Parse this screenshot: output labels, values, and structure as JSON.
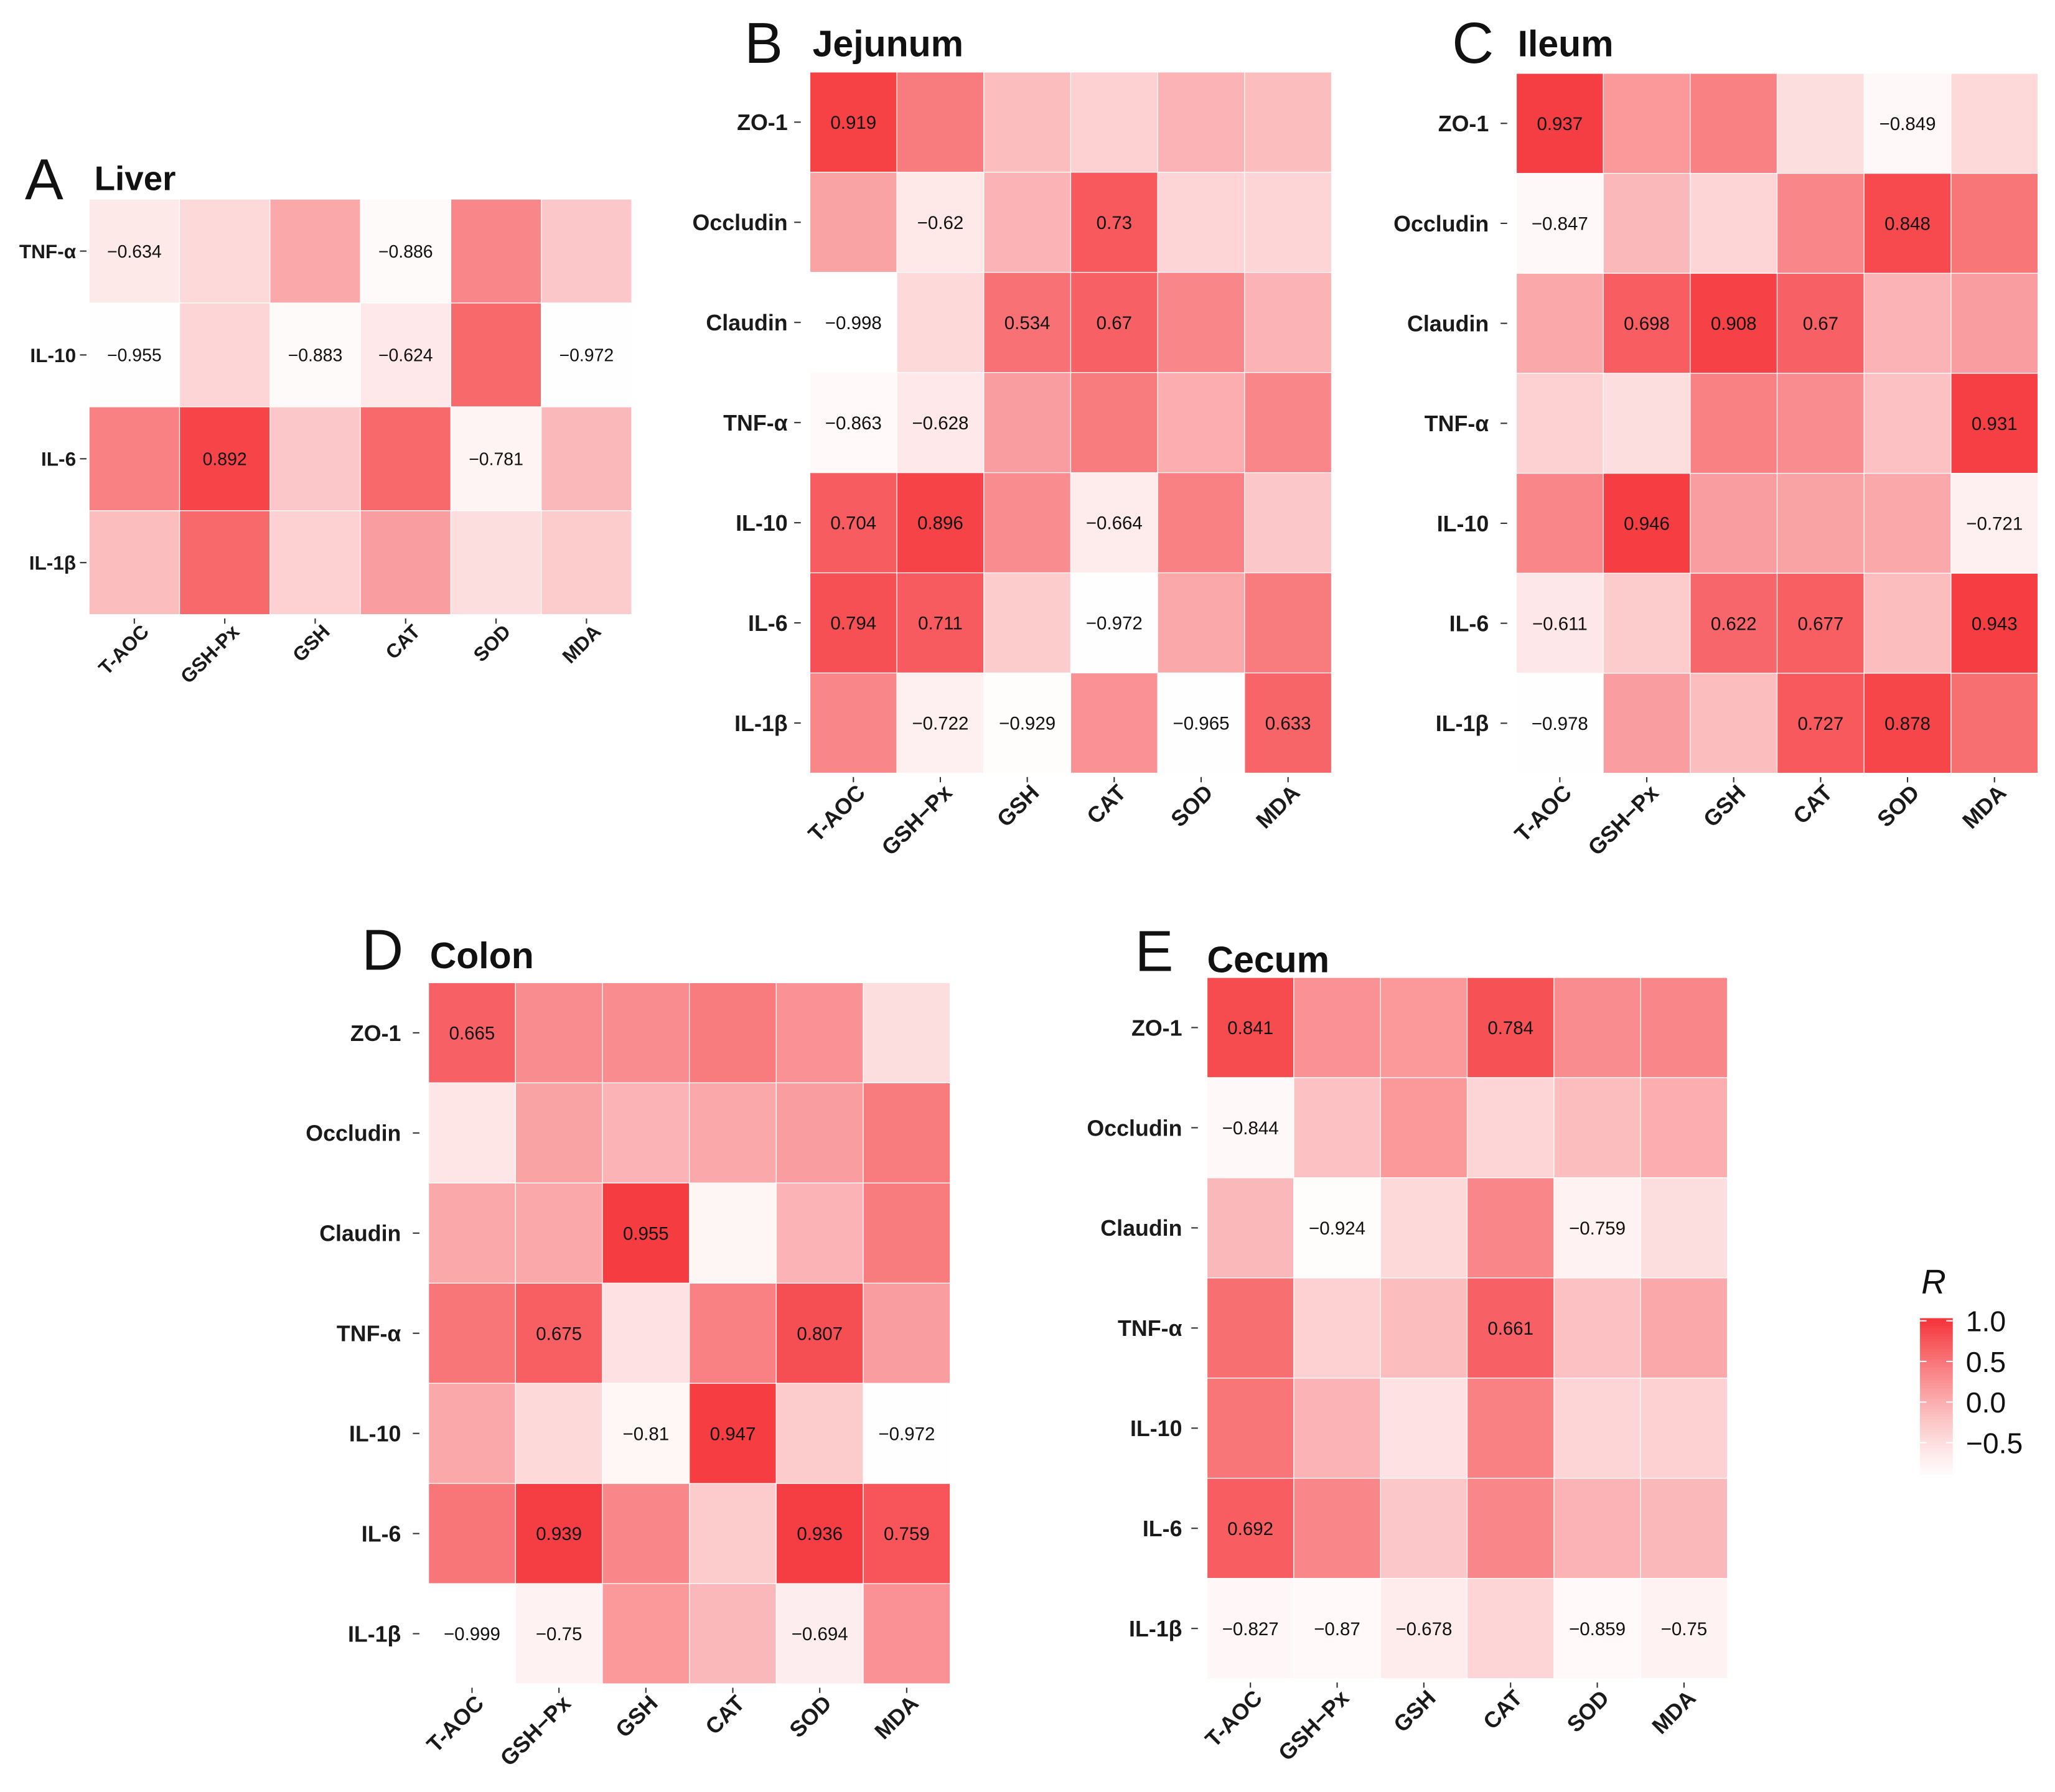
{
  "color_scale": {
    "title": "R",
    "low_color": "#ffffff",
    "high_color": "#f5363b",
    "range": [
      -1,
      1
    ],
    "ticks": [
      1,
      0.5,
      0,
      -0.5
    ],
    "tick_labels": [
      "1.0",
      "0.5",
      "0.0",
      "−0.5"
    ]
  },
  "chart_data": [
    {
      "type": "heatmap",
      "panel": "A",
      "title": "Liver",
      "rows": [
        "TNF-α",
        "IL-10",
        "IL-6",
        "IL-1β"
      ],
      "columns": [
        "T-AOC",
        "GSH-Px",
        "GSH",
        "CAT",
        "SOD",
        "MDA"
      ],
      "values": [
        [
          -0.634,
          -0.45,
          0.05,
          -0.886,
          0.35,
          -0.25
        ],
        [
          -0.955,
          -0.4,
          -0.883,
          -0.624,
          0.6,
          -0.972
        ],
        [
          0.4,
          0.892,
          -0.25,
          0.6,
          -0.781,
          -0.1
        ],
        [
          -0.15,
          0.6,
          -0.35,
          0.15,
          -0.5,
          -0.3
        ]
      ],
      "labels": [
        [
          "−0.634",
          null,
          null,
          "−0.886",
          null,
          null
        ],
        [
          "−0.955",
          null,
          "−0.883",
          "−0.624",
          null,
          "−0.972"
        ],
        [
          null,
          "0.892",
          null,
          null,
          "−0.781",
          null
        ],
        [
          null,
          null,
          null,
          null,
          null,
          null
        ]
      ]
    },
    {
      "type": "heatmap",
      "panel": "B",
      "title": "Jejunum",
      "rows": [
        "ZO-1",
        "Occludin",
        "Claudin",
        "TNF-α",
        "IL-10",
        "IL-6",
        "IL-1β"
      ],
      "columns": [
        "T-AOC",
        "GSH−Px",
        "GSH",
        "CAT",
        "SOD",
        "MDA"
      ],
      "values": [
        [
          0.919,
          0.45,
          -0.15,
          -0.35,
          -0.05,
          -0.15
        ],
        [
          0.1,
          -0.62,
          -0.05,
          0.73,
          -0.4,
          -0.4
        ],
        [
          -0.998,
          -0.45,
          0.534,
          0.67,
          0.35,
          -0.05
        ],
        [
          -0.863,
          -0.628,
          0.15,
          0.45,
          0.0,
          0.35
        ],
        [
          0.704,
          0.896,
          0.3,
          -0.664,
          0.4,
          -0.25
        ],
        [
          0.794,
          0.711,
          -0.3,
          -0.972,
          0.05,
          0.45
        ],
        [
          0.35,
          -0.722,
          -0.929,
          0.25,
          -0.965,
          0.633
        ]
      ],
      "labels": [
        [
          "0.919",
          null,
          null,
          null,
          null,
          null
        ],
        [
          null,
          "−0.62",
          null,
          "0.73",
          null,
          null
        ],
        [
          "−0.998",
          null,
          "0.534",
          "0.67",
          null,
          null
        ],
        [
          "−0.863",
          "−0.628",
          null,
          null,
          null,
          null
        ],
        [
          "0.704",
          "0.896",
          null,
          "−0.664",
          null,
          null
        ],
        [
          "0.794",
          "0.711",
          null,
          "−0.972",
          null,
          null
        ],
        [
          null,
          "−0.722",
          "−0.929",
          null,
          "−0.965",
          "0.633"
        ]
      ]
    },
    {
      "type": "heatmap",
      "panel": "C",
      "title": "Ileum",
      "rows": [
        "ZO-1",
        "Occludin",
        "Claudin",
        "TNF-α",
        "IL-10",
        "IL-6",
        "IL-1β"
      ],
      "columns": [
        "T-AOC",
        "GSH−Px",
        "GSH",
        "CAT",
        "SOD",
        "MDA"
      ],
      "values": [
        [
          0.937,
          0.2,
          0.4,
          -0.5,
          -0.849,
          -0.45
        ],
        [
          -0.847,
          -0.1,
          -0.4,
          0.35,
          0.848,
          0.5
        ],
        [
          0.05,
          0.698,
          0.908,
          0.67,
          -0.05,
          0.15
        ],
        [
          -0.35,
          -0.5,
          0.4,
          0.3,
          -0.2,
          0.931
        ],
        [
          0.35,
          0.946,
          0.15,
          0.1,
          0.05,
          -0.721
        ],
        [
          -0.611,
          -0.3,
          0.622,
          0.677,
          -0.15,
          0.943
        ],
        [
          -0.978,
          0.15,
          -0.15,
          0.727,
          0.878,
          0.55
        ]
      ],
      "labels": [
        [
          "0.937",
          null,
          null,
          null,
          "−0.849",
          null
        ],
        [
          "−0.847",
          null,
          null,
          null,
          "0.848",
          null
        ],
        [
          null,
          "0.698",
          "0.908",
          "0.67",
          null,
          null
        ],
        [
          null,
          null,
          null,
          null,
          null,
          "0.931"
        ],
        [
          null,
          "0.946",
          null,
          null,
          null,
          "−0.721"
        ],
        [
          "−0.611",
          null,
          "0.622",
          "0.677",
          null,
          "0.943"
        ],
        [
          "−0.978",
          null,
          null,
          "0.727",
          "0.878",
          null
        ]
      ]
    },
    {
      "type": "heatmap",
      "panel": "D",
      "title": "Colon",
      "rows": [
        "ZO-1",
        "Occludin",
        "Claudin",
        "TNF-α",
        "IL-10",
        "IL-6",
        "IL-1β"
      ],
      "columns": [
        "T-AOC",
        "GSH−Px",
        "GSH",
        "CAT",
        "SOD",
        "MDA"
      ],
      "values": [
        [
          0.665,
          0.3,
          0.3,
          0.45,
          0.25,
          -0.5
        ],
        [
          -0.6,
          0.1,
          -0.05,
          0.05,
          0.15,
          0.45
        ],
        [
          0.05,
          0.05,
          0.955,
          -0.8,
          -0.05,
          0.45
        ],
        [
          0.5,
          0.675,
          -0.55,
          0.4,
          0.807,
          0.15
        ],
        [
          0.05,
          -0.45,
          -0.81,
          0.947,
          -0.3,
          -0.972
        ],
        [
          0.5,
          0.939,
          0.35,
          -0.3,
          0.936,
          0.759
        ],
        [
          -0.999,
          -0.75,
          0.2,
          -0.1,
          -0.694,
          0.25
        ]
      ],
      "labels": [
        [
          "0.665",
          null,
          null,
          null,
          null,
          null
        ],
        [
          null,
          null,
          null,
          null,
          null,
          null
        ],
        [
          null,
          null,
          "0.955",
          null,
          null,
          null
        ],
        [
          null,
          "0.675",
          null,
          null,
          "0.807",
          null
        ],
        [
          null,
          null,
          "−0.81",
          "0.947",
          null,
          "−0.972"
        ],
        [
          null,
          "0.939",
          null,
          null,
          "0.936",
          "0.759"
        ],
        [
          "−0.999",
          "−0.75",
          null,
          null,
          "−0.694",
          null
        ]
      ]
    },
    {
      "type": "heatmap",
      "panel": "E",
      "title": "Cecum",
      "rows": [
        "ZO-1",
        "Occludin",
        "Claudin",
        "TNF-α",
        "IL-10",
        "IL-6",
        "IL-1β"
      ],
      "columns": [
        "T-AOC",
        "GSH−Px",
        "GSH",
        "CAT",
        "SOD",
        "MDA"
      ],
      "values": [
        [
          0.841,
          0.25,
          0.2,
          0.784,
          0.3,
          0.35
        ],
        [
          -0.844,
          -0.2,
          0.2,
          -0.4,
          -0.15,
          0.0
        ],
        [
          -0.1,
          -0.924,
          -0.45,
          0.35,
          -0.759,
          -0.5
        ],
        [
          0.55,
          -0.35,
          -0.15,
          0.661,
          -0.2,
          0.05
        ],
        [
          0.5,
          -0.05,
          -0.55,
          0.4,
          -0.4,
          -0.35
        ],
        [
          0.692,
          0.35,
          -0.25,
          0.35,
          -0.05,
          -0.1
        ],
        [
          -0.827,
          -0.87,
          -0.678,
          -0.4,
          -0.859,
          -0.75
        ]
      ],
      "labels": [
        [
          "0.841",
          null,
          null,
          "0.784",
          null,
          null
        ],
        [
          "−0.844",
          null,
          null,
          null,
          null,
          null
        ],
        [
          null,
          "−0.924",
          null,
          null,
          "−0.759",
          null
        ],
        [
          null,
          null,
          null,
          "0.661",
          null,
          null
        ],
        [
          null,
          null,
          null,
          null,
          null,
          null
        ],
        [
          "0.692",
          null,
          null,
          null,
          null,
          null
        ],
        [
          "−0.827",
          "−0.87",
          "−0.678",
          null,
          "−0.859",
          "−0.75"
        ]
      ]
    }
  ]
}
